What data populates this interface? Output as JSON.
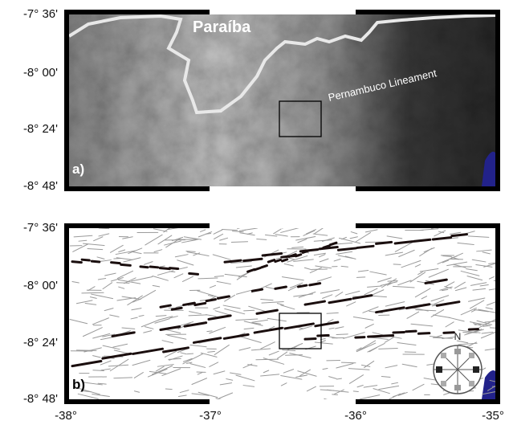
{
  "panels": [
    {
      "label": "a)",
      "place_label": "Paraíba",
      "feature_label": "Pernambuco Lineament",
      "lat_labels": [
        "-7° 36'",
        "-8° 00'",
        "-8° 24'",
        "-8° 48'"
      ]
    },
    {
      "label": "b)",
      "compass_label": "N",
      "lat_labels": [
        "-7° 36'",
        "-8° 00'",
        "-8° 24'",
        "-8° 48'"
      ]
    }
  ],
  "lon_labels": [
    "-38°",
    "-37°",
    "-36°",
    "-35°"
  ]
}
